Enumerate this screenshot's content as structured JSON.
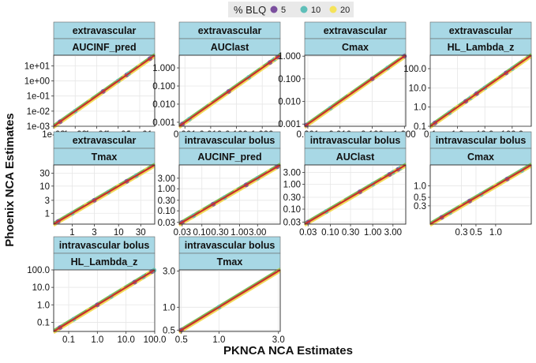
{
  "legend": {
    "title": "% BLQ",
    "items": [
      {
        "label": "5",
        "color": "#7b4f9e"
      },
      {
        "label": "10",
        "color": "#5fbfb9"
      },
      {
        "label": "20",
        "color": "#f5e35a"
      }
    ]
  },
  "colors": {
    "strip_bg": "#a8d8e5",
    "panel_bg": "#ffffff",
    "grid": "#e6e6e6",
    "identity_line": "#c8302d",
    "line_green": "#7bbf5a",
    "line_yellow": "#f2d95a"
  },
  "chart_data": {
    "type": "scatter",
    "title": "",
    "xlabel": "PKNCA NCA Estimates",
    "ylabel": "Phoenix NCA Estimates",
    "scale": "log10",
    "panels": [
      {
        "route": "extravascular",
        "param": "AUCINF_pred",
        "lim": [
          0.001,
          50
        ],
        "xticks": [
          0.001,
          0.1,
          10
        ],
        "xtick_labels": [
          "1e-03",
          "1e-01",
          "1e+01"
        ],
        "xticks_minor": [
          0.01,
          1
        ],
        "xtick_minor_labels": [
          "1e-02",
          "1e+00"
        ],
        "yticks": [
          0.001,
          0.01,
          0.1,
          1,
          10
        ],
        "ytick_labels": [
          "1e-03",
          "1e-02",
          "1e-01",
          "1e+00",
          "1e+01"
        ],
        "points": [
          0.002,
          0.01,
          0.05,
          0.2,
          1,
          2,
          2.5,
          3,
          10,
          30
        ]
      },
      {
        "route": "extravascular",
        "param": "AUClast",
        "lim": [
          0.0006,
          5
        ],
        "xticks": [
          0.001,
          0.01,
          0.1,
          1
        ],
        "xtick_labels": [
          "0.001",
          "0.010",
          "0.100",
          "1.000"
        ],
        "yticks": [
          0.001,
          0.01,
          0.1,
          1
        ],
        "ytick_labels": [
          "0.001",
          "0.010",
          "0.100",
          "1.000"
        ],
        "points": [
          0.0008,
          0.0015,
          0.01,
          0.05,
          0.3,
          1,
          2,
          3,
          3.5,
          4
        ]
      },
      {
        "route": "extravascular",
        "param": "Cmax",
        "lim": [
          0.0008,
          1.1
        ],
        "xticks": [
          0.001,
          0.01,
          0.1,
          1
        ],
        "xtick_labels": [
          "0.001",
          "0.010",
          "0.100",
          "1.000"
        ],
        "yticks": [
          0.001,
          0.01,
          0.1,
          1
        ],
        "ytick_labels": [
          "0.001",
          "0.010",
          "0.100",
          "1.000"
        ],
        "points": [
          0.0009,
          0.005,
          0.02,
          0.1,
          0.3,
          0.8,
          1.0
        ]
      },
      {
        "route": "extravascular",
        "param": "HL_Lambda_z",
        "lim": [
          0.1,
          500
        ],
        "xticks": [
          0.1,
          1,
          10,
          100
        ],
        "xtick_labels": [
          "0.1",
          "1.0",
          "10.0",
          "100.0"
        ],
        "yticks": [
          0.1,
          1,
          10,
          100
        ],
        "ytick_labels": [
          "0.1",
          "1.0",
          "10.0",
          "100.0"
        ],
        "points": [
          0.15,
          0.5,
          1,
          2,
          3,
          3.5,
          5,
          10,
          30,
          60,
          100,
          300
        ]
      },
      {
        "route": "extravascular",
        "param": "Tmax",
        "lim": [
          0.4,
          60
        ],
        "xticks": [
          1,
          3,
          10,
          30
        ],
        "xtick_labels": [
          "1",
          "3",
          "10",
          "30"
        ],
        "yticks": [
          1,
          3,
          10,
          30
        ],
        "ytick_labels": [
          "1",
          "3",
          "10",
          "30"
        ],
        "points": [
          0.5,
          1,
          2,
          3,
          6,
          10,
          15,
          24,
          40
        ]
      },
      {
        "route": "intravascular bolus",
        "param": "AUCINF_pred",
        "lim": [
          0.025,
          12
        ],
        "xticks": [
          0.03,
          0.1,
          0.3,
          1,
          3
        ],
        "xtick_labels": [
          "0.03",
          "0.10",
          "0.30",
          "1.00",
          "3.00"
        ],
        "yticks": [
          0.03,
          0.1,
          0.3,
          1,
          3
        ],
        "ytick_labels": [
          "0.03",
          "0.10",
          "0.30",
          "1.00",
          "3.00"
        ],
        "points": [
          0.03,
          0.06,
          0.1,
          0.2,
          0.4,
          0.8,
          1.5,
          3,
          6,
          10
        ]
      },
      {
        "route": "intravascular bolus",
        "param": "AUClast",
        "lim": [
          0.025,
          6
        ],
        "xticks": [
          0.03,
          0.1,
          0.3,
          1,
          3
        ],
        "xtick_labels": [
          "0.03",
          "0.10",
          "0.30",
          "1.00",
          "3.00"
        ],
        "yticks": [
          0.03,
          0.1,
          0.3,
          1,
          3
        ],
        "ytick_labels": [
          "0.03",
          "0.10",
          "0.30",
          "1.00",
          "3.00"
        ],
        "points": [
          0.03,
          0.08,
          0.2,
          0.5,
          1,
          1.8,
          2.5,
          3,
          3.5,
          4,
          4.5,
          5
        ]
      },
      {
        "route": "intravascular bolus",
        "param": "Cmax",
        "lim": [
          0.1,
          3.5
        ],
        "xticks": [
          0.3,
          0.5,
          1
        ],
        "xtick_labels": [
          "0.3",
          "0.5",
          "1.0"
        ],
        "yticks": [
          0.3,
          0.5,
          1
        ],
        "ytick_labels": [
          "0.3",
          "0.5",
          "1.0"
        ],
        "points": [
          0.15,
          0.2,
          0.3,
          0.4,
          0.6,
          1,
          1.5,
          2.5
        ]
      },
      {
        "route": "intravascular bolus",
        "param": "HL_Lambda_z",
        "lim": [
          0.03,
          100
        ],
        "xticks": [
          0.1,
          1,
          10,
          100
        ],
        "xtick_labels": [
          "0.1",
          "1.0",
          "10.0",
          "100.0"
        ],
        "yticks": [
          0.1,
          1,
          10,
          100
        ],
        "ytick_labels": [
          "0.1",
          "1.0",
          "10.0",
          "100.0"
        ],
        "points": [
          0.05,
          0.15,
          0.5,
          1,
          3,
          8,
          20,
          40,
          60,
          80,
          95
        ]
      },
      {
        "route": "intravascular bolus",
        "param": "Tmax",
        "lim": [
          0.48,
          3.1
        ],
        "xticks": [
          0.5,
          1,
          3
        ],
        "xtick_labels": [
          "0.5",
          "1.0",
          "3.0"
        ],
        "yticks": [
          0.5,
          1,
          3
        ],
        "ytick_labels": [
          "0.5",
          "1.0",
          "3.0"
        ],
        "points": [
          0.5,
          1,
          3
        ]
      }
    ]
  }
}
